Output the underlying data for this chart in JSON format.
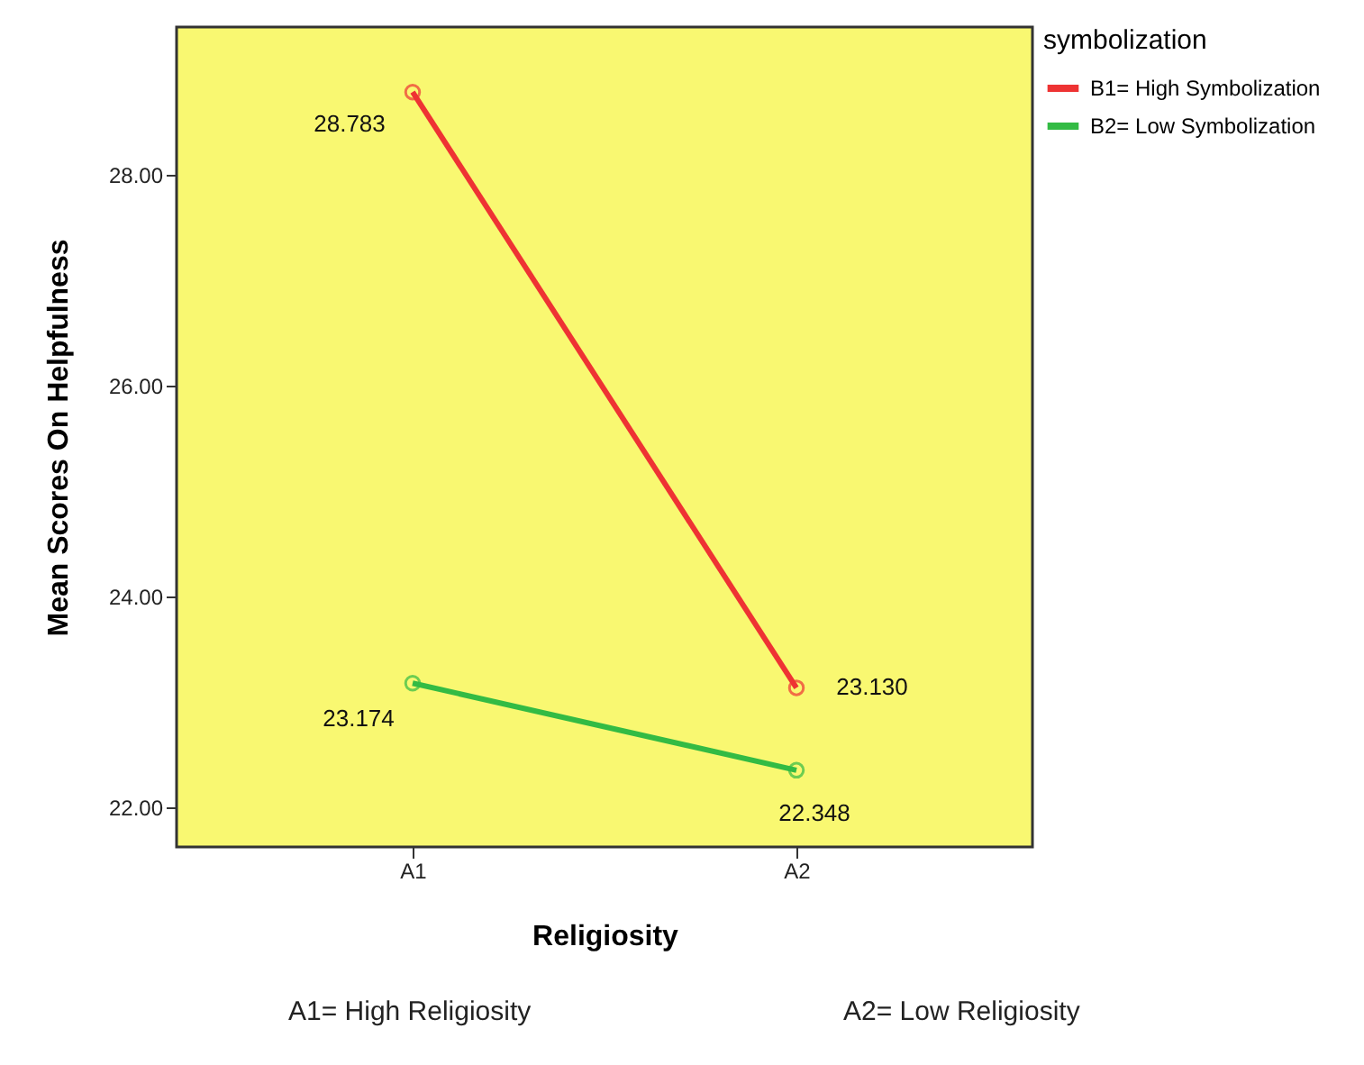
{
  "chart_data": {
    "type": "line",
    "xlabel": "Religiosity",
    "ylabel": "Mean Scores On Helpfulness",
    "legend_title": "symbolization",
    "categories": [
      "A1",
      "A2"
    ],
    "series": [
      {
        "name": "B1= High Symbolization",
        "color": "#ee3333",
        "values": [
          28.783,
          23.13
        ],
        "value_labels": [
          "28.783",
          "23.130"
        ]
      },
      {
        "name": "B2= Low Symbolization",
        "color": "#33bb44",
        "values": [
          23.174,
          22.348
        ],
        "value_labels": [
          "23.174",
          "22.348"
        ]
      }
    ],
    "ylim": [
      21.62,
      29.4
    ],
    "yticks": [
      {
        "value": 22,
        "label": "22.00"
      },
      {
        "value": 24,
        "label": "24.00"
      },
      {
        "value": 26,
        "label": "26.00"
      },
      {
        "value": 28,
        "label": "28.00"
      }
    ],
    "marker": "circle",
    "grid": false,
    "legend": "top right",
    "annotations": [
      "A1= High Religiosity",
      "A2= Low Religiosity"
    ]
  }
}
